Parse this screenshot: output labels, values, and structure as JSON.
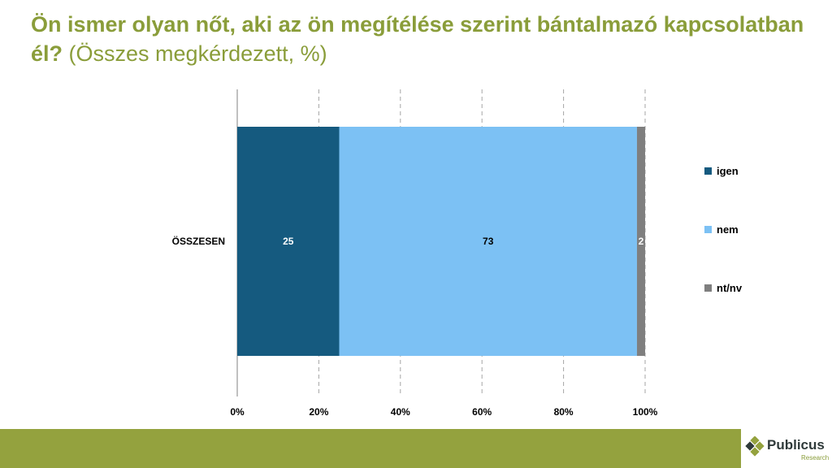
{
  "title": {
    "bold": "Ön ismer olyan nőt, aki az ön megítélése szerint bántalmazó kapcsolatban él?",
    "normal": "(Összes megkérdezett, %)"
  },
  "chart_data": {
    "type": "bar",
    "orientation": "horizontal",
    "stacked": "100%",
    "categories": [
      "ÖSSZESEN"
    ],
    "series": [
      {
        "name": "igen",
        "values": [
          25
        ],
        "color": "#155a7f",
        "label_color": "#ffffff"
      },
      {
        "name": "nem",
        "values": [
          73
        ],
        "color": "#7cc1f4",
        "label_color": "#000000"
      },
      {
        "name": "nt/nv",
        "values": [
          2
        ],
        "color": "#7f7f7f",
        "label_color": "#ffffff"
      }
    ],
    "x_ticks": [
      "0%",
      "20%",
      "40%",
      "60%",
      "80%",
      "100%"
    ],
    "xlim": [
      0,
      100
    ],
    "grid": "vertical dashed",
    "legend_position": "right"
  },
  "logo": {
    "name": "Publicus",
    "sub": "Research",
    "icon": "diamond-cluster-icon"
  }
}
